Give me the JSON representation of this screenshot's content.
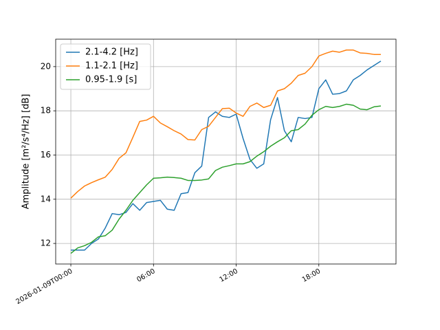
{
  "chart_data": {
    "type": "line",
    "ylabel": "Amplitude [m²/s⁴/Hz] [dB]",
    "x": [
      "2026-01-09T00:00",
      "2026-01-09T00:30",
      "2026-01-09T01:00",
      "2026-01-09T01:30",
      "2026-01-09T02:00",
      "2026-01-09T02:30",
      "2026-01-09T03:00",
      "2026-01-09T03:30",
      "2026-01-09T04:00",
      "2026-01-09T04:30",
      "2026-01-09T05:00",
      "2026-01-09T05:30",
      "2026-01-09T06:00",
      "2026-01-09T06:30",
      "2026-01-09T07:00",
      "2026-01-09T07:30",
      "2026-01-09T08:00",
      "2026-01-09T08:30",
      "2026-01-09T09:00",
      "2026-01-09T09:30",
      "2026-01-09T10:00",
      "2026-01-09T10:30",
      "2026-01-09T11:00",
      "2026-01-09T11:30",
      "2026-01-09T12:00",
      "2026-01-09T12:30",
      "2026-01-09T13:00",
      "2026-01-09T13:30",
      "2026-01-09T14:00",
      "2026-01-09T14:30",
      "2026-01-09T15:00",
      "2026-01-09T15:30",
      "2026-01-09T16:00",
      "2026-01-09T16:30",
      "2026-01-09T17:00",
      "2026-01-09T17:30",
      "2026-01-09T18:00",
      "2026-01-09T18:30",
      "2026-01-09T19:00",
      "2026-01-09T19:30",
      "2026-01-09T20:00",
      "2026-01-09T20:30",
      "2026-01-09T21:00",
      "2026-01-09T21:30",
      "2026-01-09T22:00",
      "2026-01-09T22:30"
    ],
    "series": [
      {
        "name": "2.1-4.2 [Hz]",
        "color": "#1f77b4",
        "values": [
          11.7,
          11.7,
          11.7,
          12.0,
          12.2,
          12.7,
          13.35,
          13.3,
          13.4,
          13.8,
          13.5,
          13.85,
          13.9,
          13.95,
          13.55,
          13.5,
          14.25,
          14.3,
          15.2,
          15.5,
          17.7,
          17.95,
          17.75,
          17.7,
          17.85,
          16.75,
          15.8,
          15.4,
          15.6,
          17.6,
          18.6,
          17.1,
          16.6,
          17.7,
          17.65,
          17.7,
          19.0,
          19.4,
          18.75,
          18.78,
          18.9,
          19.4,
          19.6,
          19.85,
          20.05,
          20.25
        ]
      },
      {
        "name": "1.1-2.1 [Hz]",
        "color": "#ff7f0e",
        "values": [
          14.05,
          14.35,
          14.6,
          14.75,
          14.88,
          15.0,
          15.35,
          15.85,
          16.1,
          16.8,
          17.52,
          17.58,
          17.75,
          17.45,
          17.28,
          17.1,
          16.95,
          16.7,
          16.68,
          17.15,
          17.3,
          17.7,
          18.1,
          18.12,
          17.9,
          17.75,
          18.2,
          18.35,
          18.15,
          18.25,
          18.9,
          19.0,
          19.25,
          19.6,
          19.7,
          20.0,
          20.48,
          20.6,
          20.7,
          20.65,
          20.75,
          20.75,
          20.62,
          20.6,
          20.55,
          20.55
        ]
      },
      {
        "name": "0.95-1.9 [s]",
        "color": "#2ca02c",
        "values": [
          11.55,
          11.8,
          11.9,
          12.05,
          12.3,
          12.35,
          12.6,
          13.1,
          13.5,
          13.95,
          14.3,
          14.65,
          14.95,
          14.97,
          15.0,
          14.98,
          14.95,
          14.85,
          14.85,
          14.87,
          14.92,
          15.3,
          15.45,
          15.52,
          15.6,
          15.6,
          15.7,
          15.95,
          16.15,
          16.4,
          16.6,
          16.78,
          17.1,
          17.15,
          17.4,
          17.8,
          18.05,
          18.2,
          18.15,
          18.2,
          18.3,
          18.25,
          18.08,
          18.05,
          18.18,
          18.22
        ]
      }
    ],
    "xlim": [
      "2026-01-08T22:54",
      "2026-01-09T23:36"
    ],
    "xticks": [
      "2026-01-09T00:00",
      {
        "value": "2026-01-09T06:00",
        "label": "06:00"
      },
      {
        "value": "2026-01-09T12:00",
        "label": "12:00"
      },
      {
        "value": "2026-01-09T18:00",
        "label": "18:00"
      }
    ],
    "ylim": [
      11.07,
      21.24
    ],
    "yticks": [
      12,
      14,
      16,
      18,
      20
    ],
    "grid": true,
    "legend": "upper-left"
  }
}
